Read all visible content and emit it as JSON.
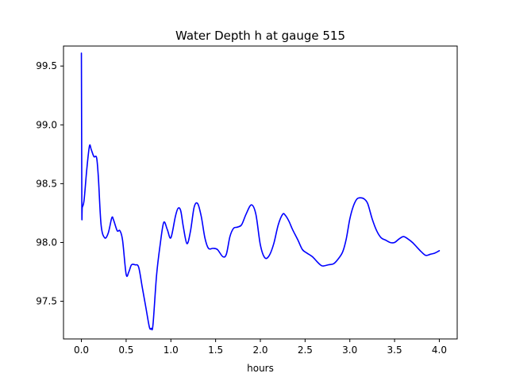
{
  "chart_data": {
    "type": "line",
    "title": "Water Depth h at gauge 515",
    "xlabel": "hours",
    "ylabel": "",
    "xlim": [
      -0.2,
      4.2
    ],
    "ylim": [
      97.18,
      99.67
    ],
    "xticks": [
      0.0,
      0.5,
      1.0,
      1.5,
      2.0,
      2.5,
      3.0,
      3.5,
      4.0
    ],
    "xtick_labels": [
      "0.0",
      "0.5",
      "1.0",
      "1.5",
      "2.0",
      "2.5",
      "3.0",
      "3.5",
      "4.0"
    ],
    "yticks": [
      97.5,
      98.0,
      98.5,
      99.0,
      99.5
    ],
    "ytick_labels": [
      "97.5",
      "98.0",
      "98.5",
      "99.0",
      "99.5"
    ],
    "grid": false,
    "series": [
      {
        "color": "#0000ff",
        "x": [
          0.0,
          0.005,
          0.01,
          0.03,
          0.06,
          0.09,
          0.11,
          0.14,
          0.17,
          0.19,
          0.22,
          0.26,
          0.3,
          0.34,
          0.36,
          0.4,
          0.43,
          0.46,
          0.5,
          0.53,
          0.56,
          0.6,
          0.64,
          0.68,
          0.72,
          0.76,
          0.78,
          0.8,
          0.84,
          0.88,
          0.92,
          0.96,
          1.0,
          1.05,
          1.08,
          1.11,
          1.14,
          1.18,
          1.22,
          1.26,
          1.3,
          1.34,
          1.38,
          1.42,
          1.47,
          1.52,
          1.58,
          1.62,
          1.66,
          1.7,
          1.74,
          1.79,
          1.84,
          1.9,
          1.95,
          2.0,
          2.05,
          2.1,
          2.15,
          2.2,
          2.25,
          2.28,
          2.32,
          2.36,
          2.42,
          2.47,
          2.52,
          2.58,
          2.63,
          2.67,
          2.7,
          2.76,
          2.82,
          2.87,
          2.92,
          2.96,
          3.0,
          3.04,
          3.08,
          3.12,
          3.16,
          3.2,
          3.25,
          3.3,
          3.35,
          3.4,
          3.45,
          3.5,
          3.55,
          3.6,
          3.65,
          3.7,
          3.75,
          3.8,
          3.85,
          3.9,
          3.95,
          4.0
        ],
        "y": [
          99.61,
          98.29,
          98.3,
          98.36,
          98.62,
          98.82,
          98.79,
          98.73,
          98.72,
          98.55,
          98.15,
          98.04,
          98.08,
          98.21,
          98.19,
          98.1,
          98.1,
          98.02,
          97.73,
          97.75,
          97.81,
          97.81,
          97.79,
          97.62,
          97.45,
          97.28,
          97.27,
          97.3,
          97.72,
          97.98,
          98.17,
          98.11,
          98.04,
          98.22,
          98.29,
          98.27,
          98.13,
          97.99,
          98.1,
          98.3,
          98.33,
          98.22,
          98.04,
          97.95,
          97.95,
          97.94,
          97.88,
          97.9,
          98.05,
          98.12,
          98.13,
          98.15,
          98.24,
          98.32,
          98.24,
          97.98,
          97.87,
          97.89,
          97.99,
          98.15,
          98.24,
          98.23,
          98.18,
          98.11,
          98.02,
          97.94,
          97.91,
          97.88,
          97.84,
          97.81,
          97.8,
          97.81,
          97.82,
          97.86,
          97.92,
          98.03,
          98.2,
          98.31,
          98.37,
          98.38,
          98.37,
          98.33,
          98.2,
          98.1,
          98.04,
          98.02,
          98.0,
          98.0,
          98.03,
          98.05,
          98.03,
          98.0,
          97.96,
          97.92,
          97.89,
          97.9,
          97.91,
          97.93
        ]
      }
    ]
  }
}
